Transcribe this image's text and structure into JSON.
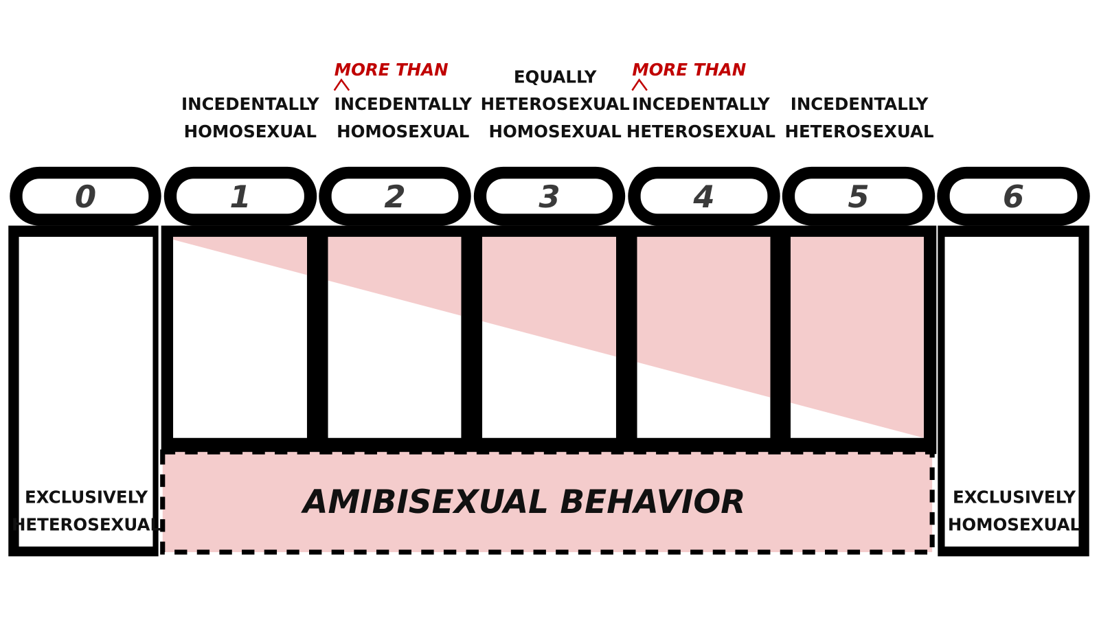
{
  "scale": [
    {
      "number": "0",
      "bottom_label": [
        "EXCLUSIVELY",
        "HETEROSEXUAL"
      ]
    },
    {
      "number": "1",
      "top_label": [
        "INCEDENTALLY",
        "HOMOSEXUAL"
      ]
    },
    {
      "number": "2",
      "annotation": "MORE THAN",
      "top_label": [
        "INCEDENTALLY",
        "HOMOSEXUAL"
      ]
    },
    {
      "number": "3",
      "top_label": [
        "EQUALLY",
        "HETEROSEXUAL",
        "HOMOSEXUAL"
      ]
    },
    {
      "number": "4",
      "annotation": "MORE THAN",
      "top_label": [
        "INCEDENTALLY",
        "HETEROSEXUAL"
      ]
    },
    {
      "number": "5",
      "top_label": [
        "INCEDENTALLY",
        "HETEROSEXUAL"
      ]
    },
    {
      "number": "6",
      "bottom_label": [
        "EXCLUSIVELY",
        "HOMOSEXUAL"
      ]
    }
  ],
  "center_label": "AMIBISEXUAL BEHAVIOR"
}
